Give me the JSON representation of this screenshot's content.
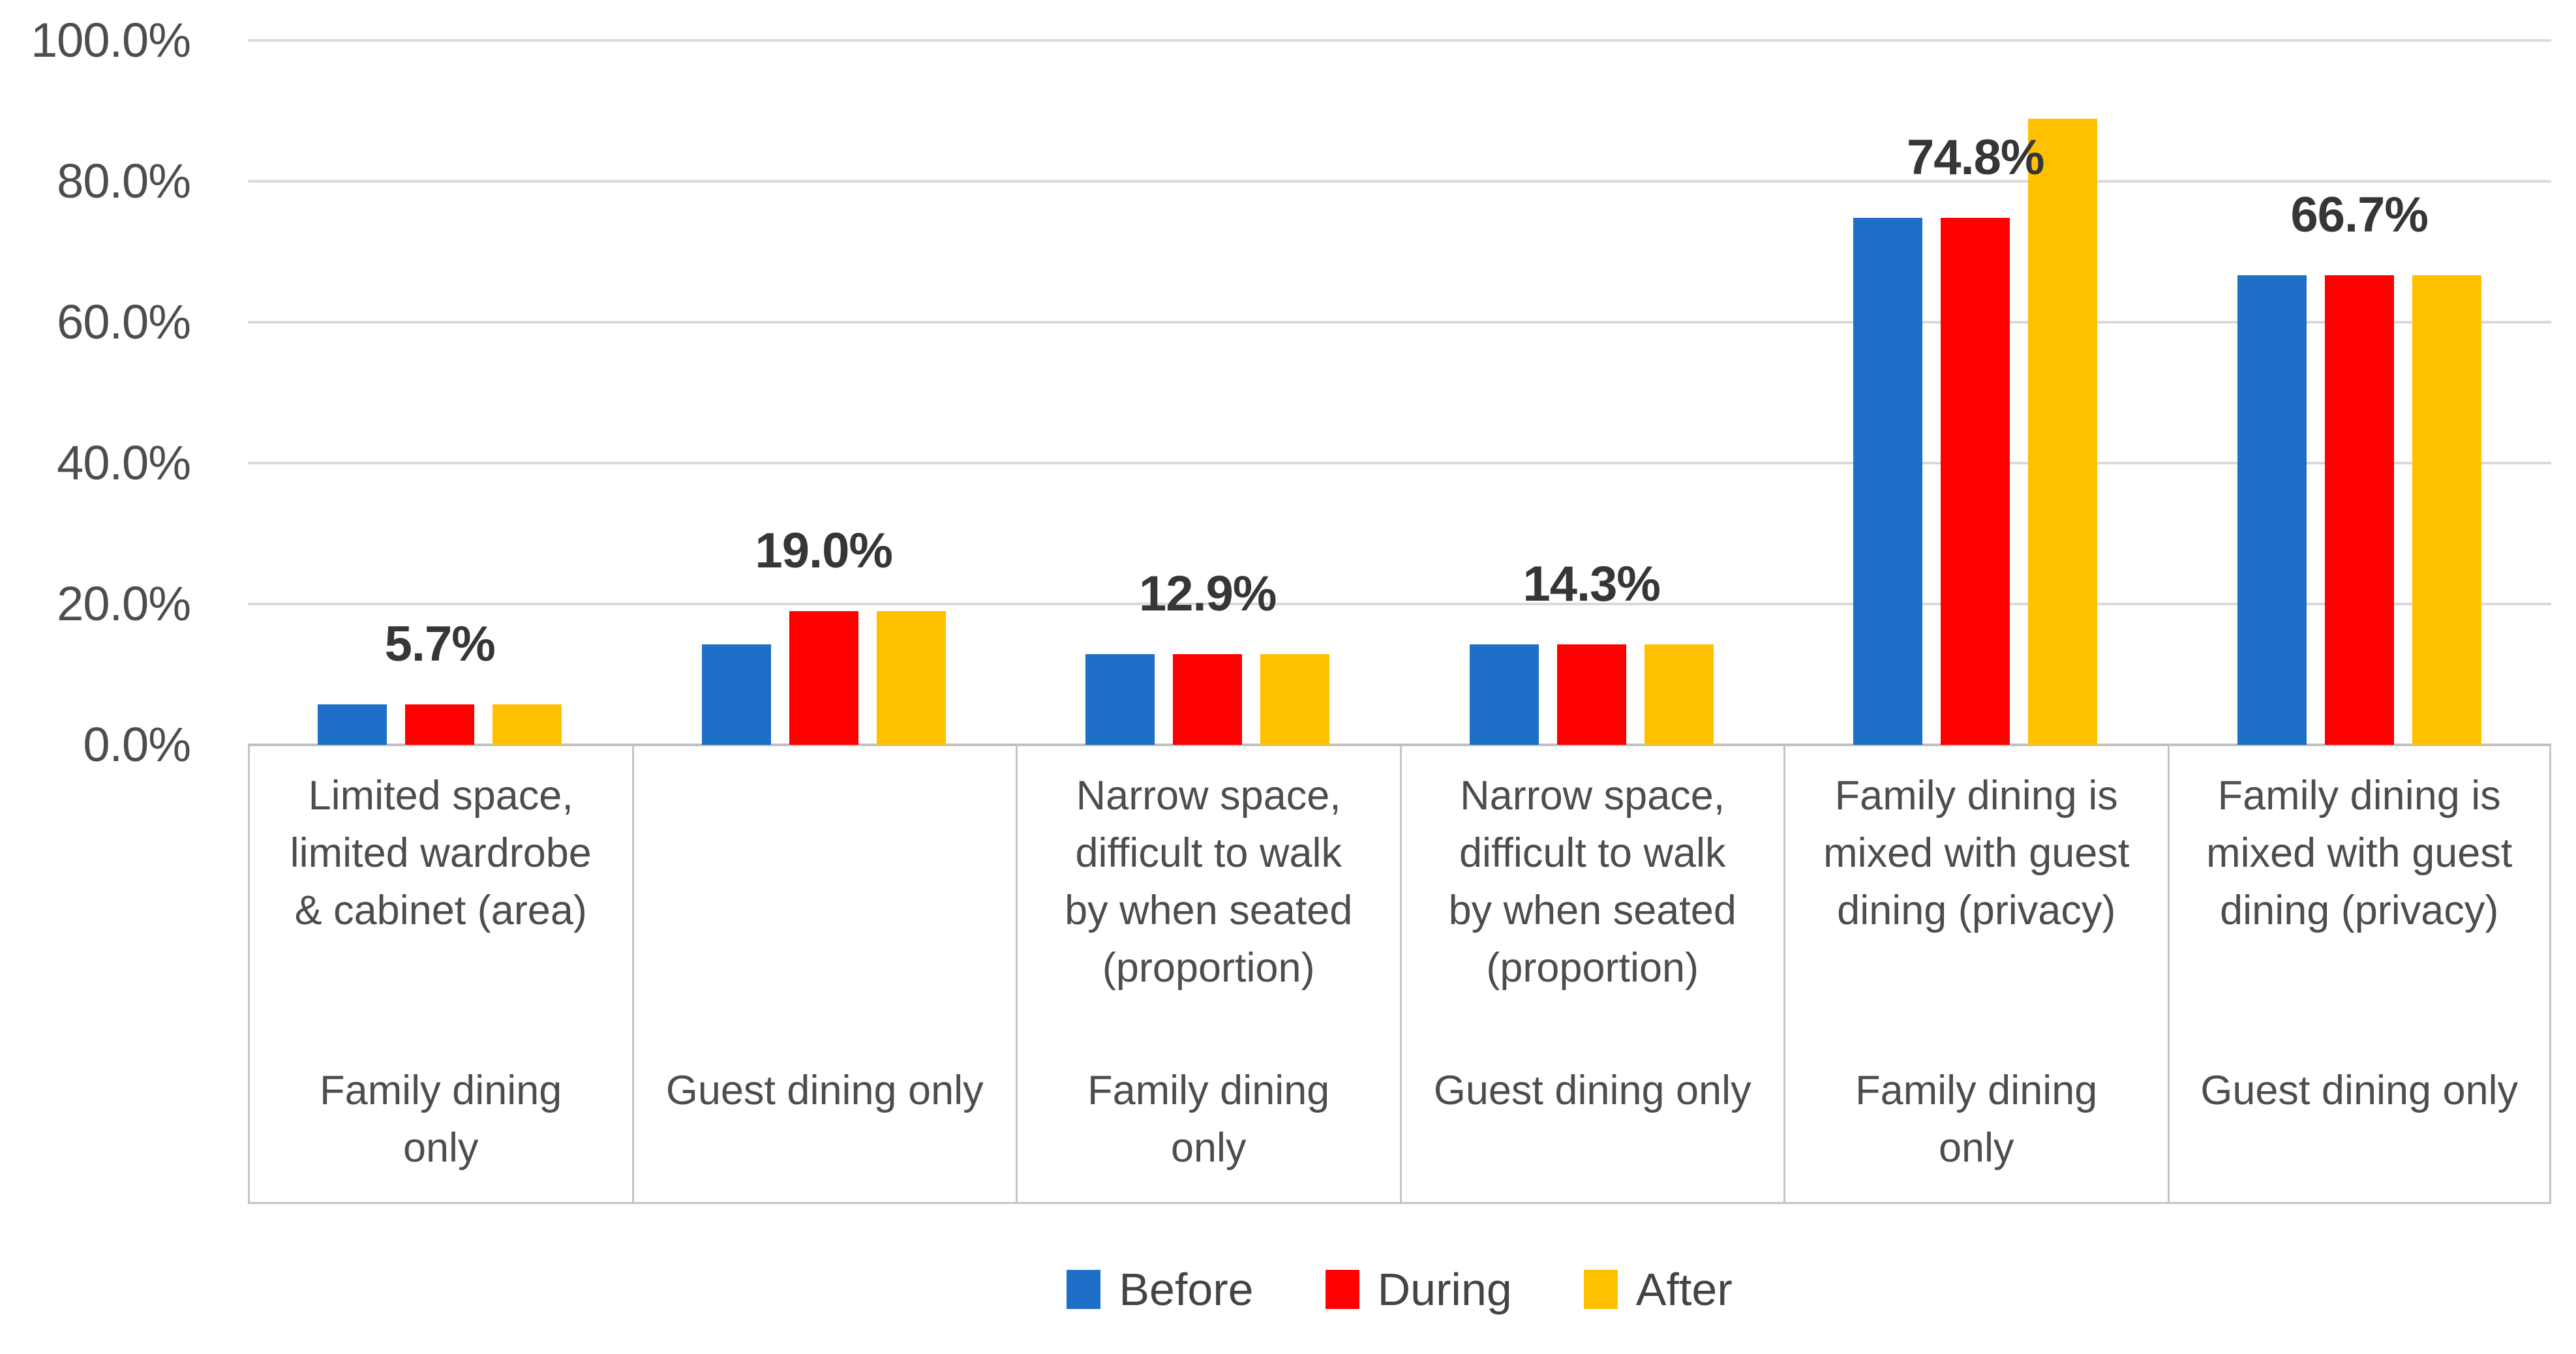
{
  "chart_data": {
    "type": "bar",
    "title": "",
    "xlabel": "",
    "ylabel": "",
    "ylim": [
      0,
      100
    ],
    "grid": true,
    "legend_position": "bottom",
    "y_ticks": [
      {
        "label": "100.0%",
        "value": 100
      },
      {
        "label": "80.0%",
        "value": 80
      },
      {
        "label": "60.0%",
        "value": 60
      },
      {
        "label": "40.0%",
        "value": 40
      },
      {
        "label": "20.0%",
        "value": 20
      },
      {
        "label": "0.0%",
        "value": 0
      }
    ],
    "series": [
      {
        "name": "Before",
        "color": "#1D6FC8",
        "values": [
          5.7,
          14.3,
          12.9,
          14.3,
          74.8,
          66.7
        ]
      },
      {
        "name": "During",
        "color": "#FF0000",
        "values": [
          5.7,
          19.0,
          12.9,
          14.3,
          74.8,
          66.7
        ]
      },
      {
        "name": "After",
        "color": "#FFC000",
        "values": [
          5.7,
          19.0,
          12.9,
          14.3,
          88.9,
          66.7
        ]
      }
    ],
    "categories": [
      {
        "description": "Limited space,\nlimited wardrobe\n& cabinet (area)",
        "group": "Family dining\nonly",
        "data_label": "5.7%"
      },
      {
        "description": "",
        "group": "Guest dining only",
        "data_label": "19.0%"
      },
      {
        "description": "Narrow space,\ndifficult to walk\nby when seated\n(proportion)",
        "group": "Family dining\nonly",
        "data_label": "12.9%"
      },
      {
        "description": "Narrow space,\ndifficult to walk\nby when seated\n(proportion)",
        "group": "Guest dining only",
        "data_label": "14.3%"
      },
      {
        "description": "Family dining is\nmixed with guest\ndining (privacy)",
        "group": "Family dining\nonly",
        "data_label": "74.8%"
      },
      {
        "description": "Family dining is\nmixed with guest\ndining (privacy)",
        "group": "Guest dining only",
        "data_label": "66.7%"
      }
    ]
  },
  "legend": {
    "items": [
      {
        "label": "Before",
        "color": "#1D6FC8"
      },
      {
        "label": "During",
        "color": "#FF0000"
      },
      {
        "label": "After",
        "color": "#FFC000"
      }
    ]
  },
  "colors": {
    "gridline": "#D9D9D9",
    "axis_line": "#BFBFBF",
    "cell_border": "#C4C4C4",
    "tick_text": "#4D4D4D",
    "category_text": "#4D4D4D",
    "data_label_text": "#363636",
    "legend_text": "#444444",
    "background": "#FFFFFF"
  }
}
